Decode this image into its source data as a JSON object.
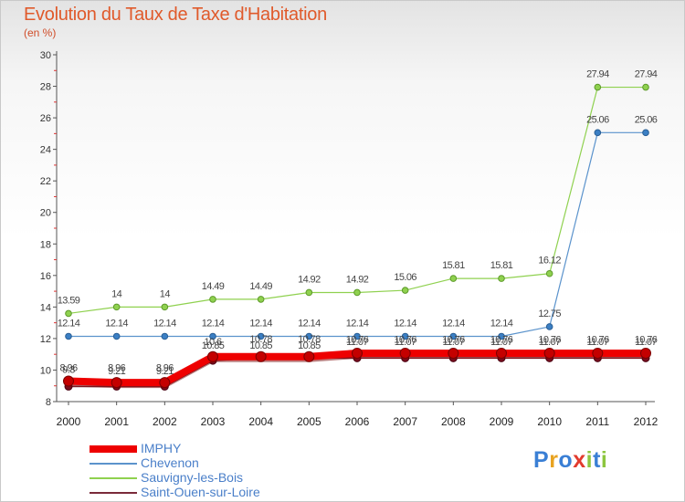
{
  "title": "Evolution du Taux de Taxe d'Habitation",
  "subtitle": "(en %)",
  "logo": {
    "text": "Proxiti",
    "letter_colors": [
      "#3a7fd5",
      "#e8a321",
      "#3a7fd5",
      "#e23b2e",
      "#8dc63f",
      "#3a7fd5",
      "#8dc63f"
    ]
  },
  "chart_data": {
    "type": "line",
    "title": "Evolution du Taux de Taxe d'Habitation",
    "ylabel": "(en %)",
    "xlabel": "",
    "ylim": [
      8,
      30
    ],
    "yticks": [
      8,
      10,
      12,
      14,
      16,
      18,
      20,
      22,
      24,
      26,
      28,
      30
    ],
    "categories": [
      "2000",
      "2001",
      "2002",
      "2003",
      "2004",
      "2005",
      "2006",
      "2007",
      "2008",
      "2009",
      "2010",
      "2011",
      "2012"
    ],
    "grid": false,
    "legend_position": "bottom-left",
    "series": [
      {
        "name": "Saint-Ouen-sur-Loire",
        "color": "#7a2a3a",
        "values": [
          8.96,
          8.96,
          8.96,
          10.6,
          10.78,
          10.78,
          10.76,
          10.76,
          10.76,
          10.76,
          10.76,
          10.76,
          10.76
        ]
      },
      {
        "name": "Chevenon",
        "color": "#5b93cc",
        "values": [
          12.14,
          12.14,
          12.14,
          12.14,
          12.14,
          12.14,
          12.14,
          12.14,
          12.14,
          12.14,
          12.75,
          25.06,
          25.06
        ]
      },
      {
        "name": "Sauvigny-les-Bois",
        "color": "#8fd14f",
        "values": [
          13.59,
          14,
          14,
          14.49,
          14.49,
          14.92,
          14.92,
          15.06,
          15.81,
          15.81,
          16.12,
          27.94,
          27.94
        ]
      },
      {
        "name": "IMPHY",
        "color": "#ee0000",
        "values": [
          9.3,
          9.21,
          9.21,
          10.85,
          10.85,
          10.85,
          11.07,
          11.07,
          11.07,
          11.07,
          11.07,
          11.07,
          11.07
        ]
      }
    ],
    "labels": [
      {
        "series": "Saint-Ouen-sur-Loire",
        "texts": [
          "8.96",
          "8.96",
          "8.96",
          "10.6",
          "10.78",
          "10.78",
          "10.76",
          "10.76",
          "10.76",
          "10.76",
          "10.76",
          "10.76",
          "10.76"
        ]
      },
      {
        "series": "Chevenon",
        "texts": [
          "12.14",
          "12.14",
          "12.14",
          "12.14",
          "12.14",
          "12.14",
          "12.14",
          "12.14",
          "12.14",
          "12.14",
          "12.75",
          "25.06",
          "25.06"
        ]
      },
      {
        "series": "Sauvigny-les-Bois",
        "texts": [
          "13.59",
          "14",
          "14",
          "14.49",
          "14.49",
          "14.92",
          "14.92",
          "15.06",
          "15.81",
          "15.81",
          "16.12",
          "27.94",
          "27.94"
        ]
      },
      {
        "series": "IMPHY",
        "texts": [
          "9.3",
          "9.21",
          "9.21",
          "10.85",
          "10.85",
          "10.85",
          "11.07",
          "11.07",
          "11.07",
          "11.07",
          "11.07",
          "11.07",
          "11.07"
        ]
      }
    ],
    "legend": [
      "IMPHY",
      "Chevenon",
      "Sauvigny-les-Bois",
      "Saint-Ouen-sur-Loire"
    ]
  }
}
